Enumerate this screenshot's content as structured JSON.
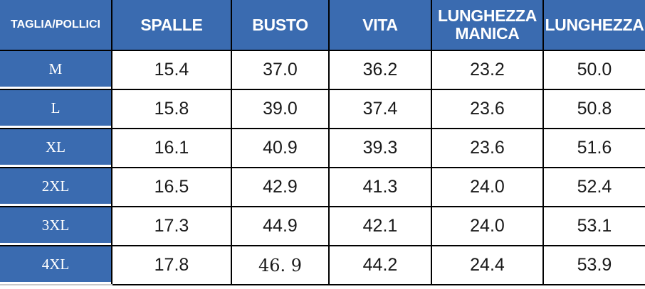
{
  "colors": {
    "header_bg": "#3a6bb0",
    "header_text": "#ffffff",
    "label_text": "#ffffff",
    "value_text": "#1a1a1a",
    "border": "#000000",
    "row_bg": "#ffffff"
  },
  "chart_data": {
    "type": "table",
    "columns": [
      "TAGLIA/POLLICI",
      "SPALLE",
      "BUSTO",
      "VITA",
      "LUNGHEZZA MANICA",
      "LUNGHEZZA"
    ],
    "rows": [
      {
        "label": "M",
        "values": [
          "15.4",
          "37.0",
          "36.2",
          "23.2",
          "50.0"
        ]
      },
      {
        "label": "L",
        "values": [
          "15.8",
          "39.0",
          "37.4",
          "23.6",
          "50.8"
        ]
      },
      {
        "label": "XL",
        "values": [
          "16.1",
          "40.9",
          "39.3",
          "23.6",
          "51.6"
        ]
      },
      {
        "label": "2XL",
        "values": [
          "16.5",
          "42.9",
          "41.3",
          "24.0",
          "52.4"
        ]
      },
      {
        "label": "3XL",
        "values": [
          "17.3",
          "44.9",
          "42.1",
          "24.0",
          "53.1"
        ]
      },
      {
        "label": "4XL",
        "values": [
          "17.8",
          "46. 9",
          "44.2",
          "24.4",
          "53.9"
        ]
      }
    ]
  }
}
